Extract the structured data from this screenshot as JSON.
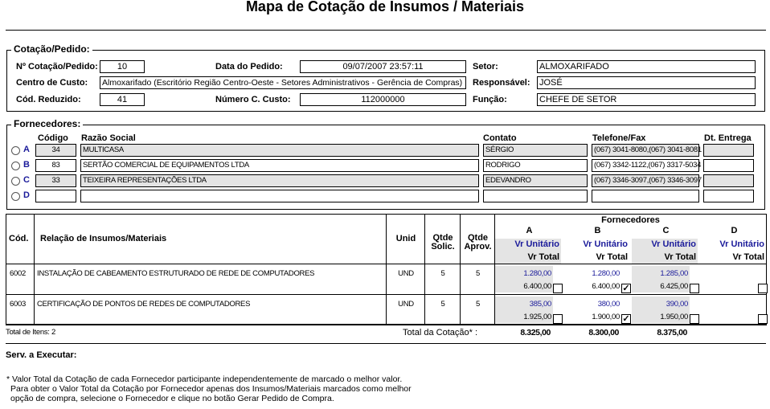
{
  "title": "Mapa de Cotação de Insumos / Materiais",
  "pedido": {
    "legend": "Cotação/Pedido:",
    "numero_label": "Nº Cotação/Pedido:",
    "numero": "10",
    "data_label": "Data do Pedido:",
    "data": "09/07/2007 23:57:11",
    "setor_label": "Setor:",
    "setor": "ALMOXARIFADO",
    "centro_label": "Centro de Custo:",
    "centro": "Almoxarifado (Escritório Região Centro-Oeste - Setores Administrativos - Gerência de Compras)",
    "responsavel_label": "Responsável:",
    "responsavel": "JOSÉ",
    "reduzido_label": "Cód. Reduzido:",
    "reduzido": "41",
    "num_custo_label": "Número C. Custo:",
    "num_custo": "112000000",
    "funcao_label": "Função:",
    "funcao": "CHEFE DE SETOR"
  },
  "fornecedores": {
    "legend": "Fornecedores:",
    "headers": {
      "codigo": "Código",
      "razao": "Razão Social",
      "contato": "Contato",
      "telefone": "Telefone/Fax",
      "entrega": "Dt. Entrega"
    },
    "rows": [
      {
        "letter": "A",
        "codigo": "34",
        "razao": "MULTICASA",
        "contato": "SÉRGIO",
        "telefone": "(067) 3041-8080,(067) 3041-8081",
        "entrega": ""
      },
      {
        "letter": "B",
        "codigo": "83",
        "razao": "SERTÃO COMERCIAL DE EQUIPAMENTOS LTDA",
        "contato": "RODRIGO",
        "telefone": "(067) 3342-1122,(067) 3317-5034",
        "entrega": ""
      },
      {
        "letter": "C",
        "codigo": "33",
        "razao": "TEIXEIRA REPRESENTAÇÕES LTDA",
        "contato": "EDEVANDRO",
        "telefone": "(067) 3346-3097,(067) 3346-3097",
        "entrega": ""
      },
      {
        "letter": "D",
        "codigo": "",
        "razao": "",
        "contato": "",
        "telefone": "",
        "entrega": ""
      }
    ]
  },
  "tabela": {
    "headers": {
      "cod": "Cód.",
      "relacao": "Relação de Insumos/Materiais",
      "unid": "Unid",
      "solic": "Qtde Solic.",
      "aprov": "Qtde Aprov.",
      "fornecedores": "Fornecedores",
      "vr_unit": "Vr Unitário",
      "vr_total": "Vr Total"
    },
    "suppliers": [
      "A",
      "B",
      "C",
      "D"
    ],
    "items": [
      {
        "cod": "6002",
        "desc": "INSTALAÇÃO DE CABEAMENTO ESTRUTURADO DE REDE DE COMPUTADORES",
        "unid": "UND",
        "solic": "5",
        "aprov": "5",
        "quotes": [
          {
            "unit": "1.280,00",
            "total": "6.400,00",
            "checked": false
          },
          {
            "unit": "1.280,00",
            "total": "6.400,00",
            "checked": true
          },
          {
            "unit": "1.285,00",
            "total": "6.425,00",
            "checked": false
          },
          {
            "unit": "",
            "total": "",
            "checked": false
          }
        ]
      },
      {
        "cod": "6003",
        "desc": "CERTIFICAÇÃO DE PONTOS DE REDES DE COMPUTADORES",
        "unid": "UND",
        "solic": "5",
        "aprov": "5",
        "quotes": [
          {
            "unit": "385,00",
            "total": "1.925,00",
            "checked": false
          },
          {
            "unit": "380,00",
            "total": "1.900,00",
            "checked": true
          },
          {
            "unit": "390,00",
            "total": "1.950,00",
            "checked": false
          },
          {
            "unit": "",
            "total": "",
            "checked": false
          }
        ]
      }
    ],
    "total_itens": "Total de Itens: 2",
    "total_label": "Total da Cotação* :",
    "totals": [
      "8.325,00",
      "8.300,00",
      "8.375,00",
      ""
    ]
  },
  "serv_label": "Serv. a Executar:",
  "notes": [
    "* Valor Total da Cotação de cada Fornecedor participante independentemente de marcado o melhor valor.",
    "Para obter o Valor Total da Cotação por Fornecedor apenas dos Insumos/Materiais marcados como melhor",
    "opção de compra, selecione o Fornecedor e clique no botão Gerar Pedido de Compra."
  ]
}
